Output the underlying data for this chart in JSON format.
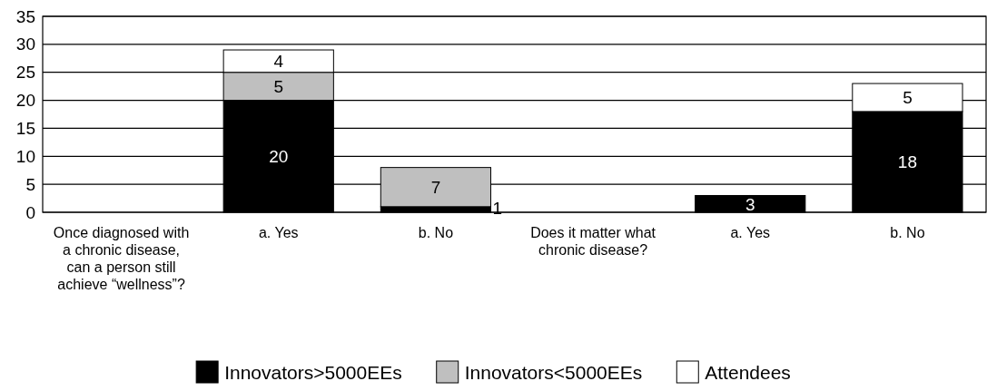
{
  "chart_data": {
    "type": "bar",
    "stacked": true,
    "categories": [
      "Once diagnosed with a chronic disease, can a person still achieve “wellness”?",
      "a.  Yes",
      "b.  No",
      "Does it matter what chronic disease?",
      "a.  Yes",
      "b.  No"
    ],
    "series": [
      {
        "name": "Innovators>5000EEs",
        "color": "#000000",
        "values": [
          null,
          20,
          1,
          null,
          3,
          18
        ]
      },
      {
        "name": "Innovators<5000EEs",
        "color": "#bfbfbf",
        "values": [
          null,
          5,
          7,
          null,
          null,
          null
        ]
      },
      {
        "name": "Attendees",
        "color": "#ffffff",
        "values": [
          null,
          4,
          null,
          null,
          null,
          5
        ]
      }
    ],
    "ylim": [
      0,
      35
    ],
    "yticks": [
      0,
      5,
      10,
      15,
      20,
      25,
      30,
      35
    ],
    "grid": "y",
    "legend": "bottom",
    "data_labels": true
  }
}
